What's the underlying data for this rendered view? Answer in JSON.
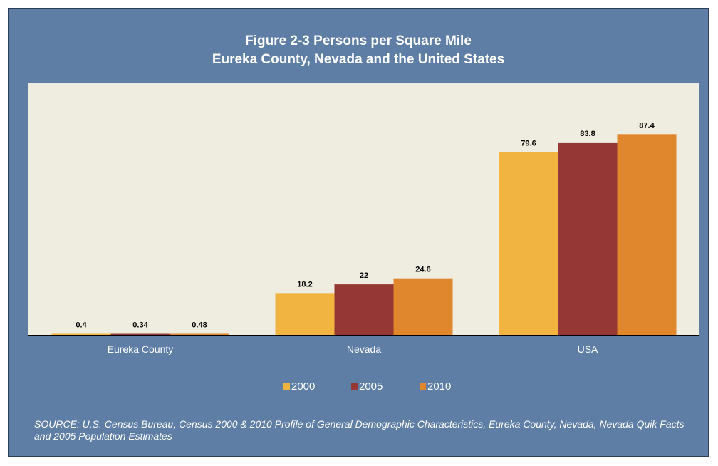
{
  "chart_data": {
    "type": "bar",
    "title_lines": [
      "Figure 2-3 Persons per Square Mile",
      "Eureka County, Nevada and the United States"
    ],
    "categories": [
      "Eureka County",
      "Nevada",
      "USA"
    ],
    "series": [
      {
        "name": "2000",
        "values": [
          0.4,
          18.2,
          79.6
        ],
        "labels": [
          "0.4",
          "18.2",
          "79.6"
        ],
        "color": "#f2b441"
      },
      {
        "name": "2005",
        "values": [
          0.34,
          22,
          83.8
        ],
        "labels": [
          "0.34",
          "22",
          "83.8"
        ],
        "color": "#953734"
      },
      {
        "name": "2010",
        "values": [
          0.48,
          24.6,
          87.4
        ],
        "labels": [
          "0.48",
          "24.6",
          "87.4"
        ],
        "color": "#e0862d"
      }
    ],
    "xlabel": "",
    "ylabel": "",
    "ylim": [
      0,
      100
    ],
    "grid": false,
    "y_axis_visible": false,
    "legend_position": "bottom",
    "plot_background": "#efece0",
    "frame_background": "#5f7ea5"
  },
  "source_note": "SOURCE: U.S. Census Bureau, Census 2000 & 2010 Profile of General Demographic Characteristics, Eureka County, Nevada, Nevada Quik Facts and 2005 Population Estimates"
}
